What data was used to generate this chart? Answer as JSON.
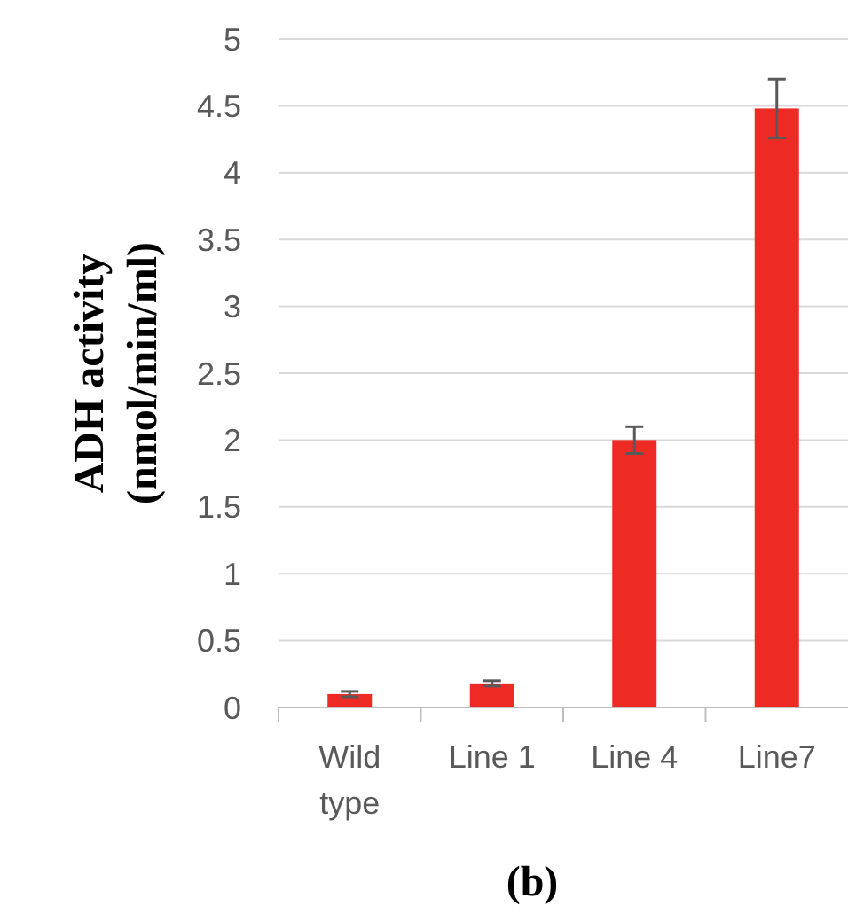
{
  "chart_data": {
    "type": "bar",
    "ylabel": "ADH activity\n(nmol/min/ml)",
    "categories": [
      "Wild type",
      "Line 1",
      "Line 4",
      "Line7"
    ],
    "values": [
      0.1,
      0.18,
      2.0,
      4.48
    ],
    "errors": [
      0.02,
      0.02,
      0.1,
      0.22
    ],
    "color": "#ee2a24",
    "ylim": [
      0,
      5
    ],
    "yticks": [
      0,
      0.5,
      1,
      1.5,
      2,
      2.5,
      3,
      3.5,
      4,
      4.5,
      5
    ],
    "grid": "y",
    "annotations": [
      "(b)"
    ]
  }
}
